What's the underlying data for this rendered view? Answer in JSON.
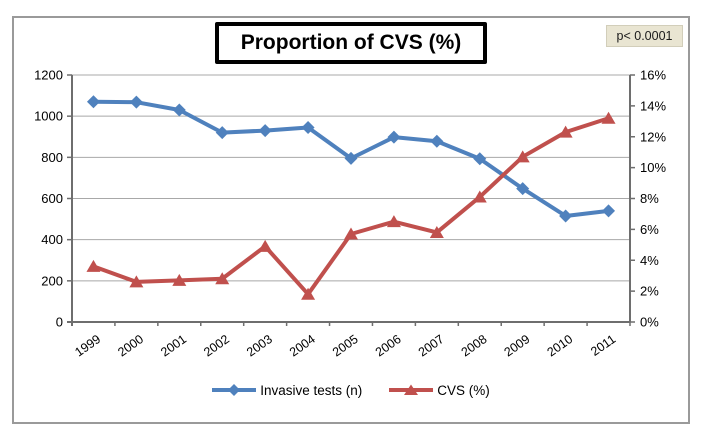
{
  "figure": {
    "title": "Proportion of CVS (%)",
    "p_value": "p< 0.0001"
  },
  "chart_data": {
    "type": "line",
    "title": "Proportion of CVS (%)",
    "annotation": "p< 0.0001",
    "categories": [
      "1999",
      "2000",
      "2001",
      "2002",
      "2003",
      "2004",
      "2005",
      "2006",
      "2007",
      "2008",
      "2009",
      "2010",
      "2011"
    ],
    "series": [
      {
        "name": "Invasive tests (n)",
        "axis": "left",
        "marker": "diamond",
        "color": "#4f81bd",
        "values": [
          1070,
          1068,
          1030,
          920,
          930,
          945,
          795,
          898,
          878,
          793,
          648,
          515,
          540
        ]
      },
      {
        "name": "CVS (%)",
        "axis": "right",
        "marker": "triangle",
        "color": "#c0504d",
        "values": [
          3.6,
          2.6,
          2.7,
          2.8,
          4.9,
          1.8,
          5.7,
          6.5,
          5.8,
          8.1,
          10.7,
          12.3,
          13.2
        ]
      }
    ],
    "left_axis": {
      "min": 0,
      "max": 1200,
      "step": 200,
      "tick_labels": [
        "0",
        "200",
        "400",
        "600",
        "800",
        "1000",
        "1200"
      ]
    },
    "right_axis": {
      "min": 0,
      "max": 16,
      "step": 2,
      "tick_labels": [
        "0%",
        "2%",
        "4%",
        "6%",
        "8%",
        "10%",
        "12%",
        "14%",
        "16%"
      ]
    },
    "legend": {
      "position": "bottom",
      "entries": [
        "Invasive tests (n)",
        "CVS (%)"
      ]
    },
    "grid": true
  },
  "colors": {
    "series_blue": "#4f81bd",
    "series_red": "#c0504d",
    "gridline": "#a8a8a8",
    "axis_line": "#6e6e6e",
    "frame_border": "#9a9a9a",
    "pbox_bg": "#e9e5d2",
    "text": "#000000"
  }
}
